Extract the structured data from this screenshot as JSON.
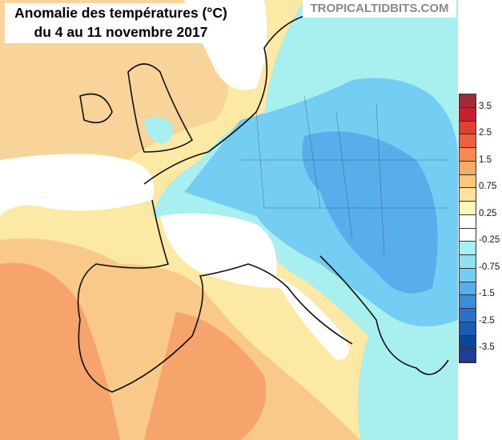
{
  "title": {
    "line1": "Anomalie des températures (°C)",
    "line2": "du 4 au 11 novembre 2017"
  },
  "credit": "TROPICALTIDBITS.COM",
  "colorbar": {
    "unit": "°C",
    "colors": [
      "#9e2a3a",
      "#c8202a",
      "#e04030",
      "#ee6040",
      "#f58a50",
      "#f8aa68",
      "#fbc878",
      "#fde29a",
      "#fff8b8",
      "#ffffff",
      "#ffffff",
      "#a8f0f0",
      "#8ee2f2",
      "#74cdf2",
      "#58aeea",
      "#3c8cdc",
      "#2a72c8",
      "#1a5cb2",
      "#0c4698",
      "#1e3c98"
    ],
    "labels": [
      "3.5",
      "2.5",
      "1.5",
      "0.75",
      "0.25",
      "-0.25",
      "-0.75",
      "-1.5",
      "-2.5",
      "-3.5"
    ]
  },
  "map": {
    "region": "Europe",
    "field_colors": {
      "warm_light": "#fde9a6",
      "warm": "#f9c98a",
      "warm_strong": "#f6a36c",
      "neutral": "#ffffff",
      "cool_light": "#a8f0f0",
      "cool": "#74cdf2",
      "cool_strong": "#58aeea"
    }
  }
}
